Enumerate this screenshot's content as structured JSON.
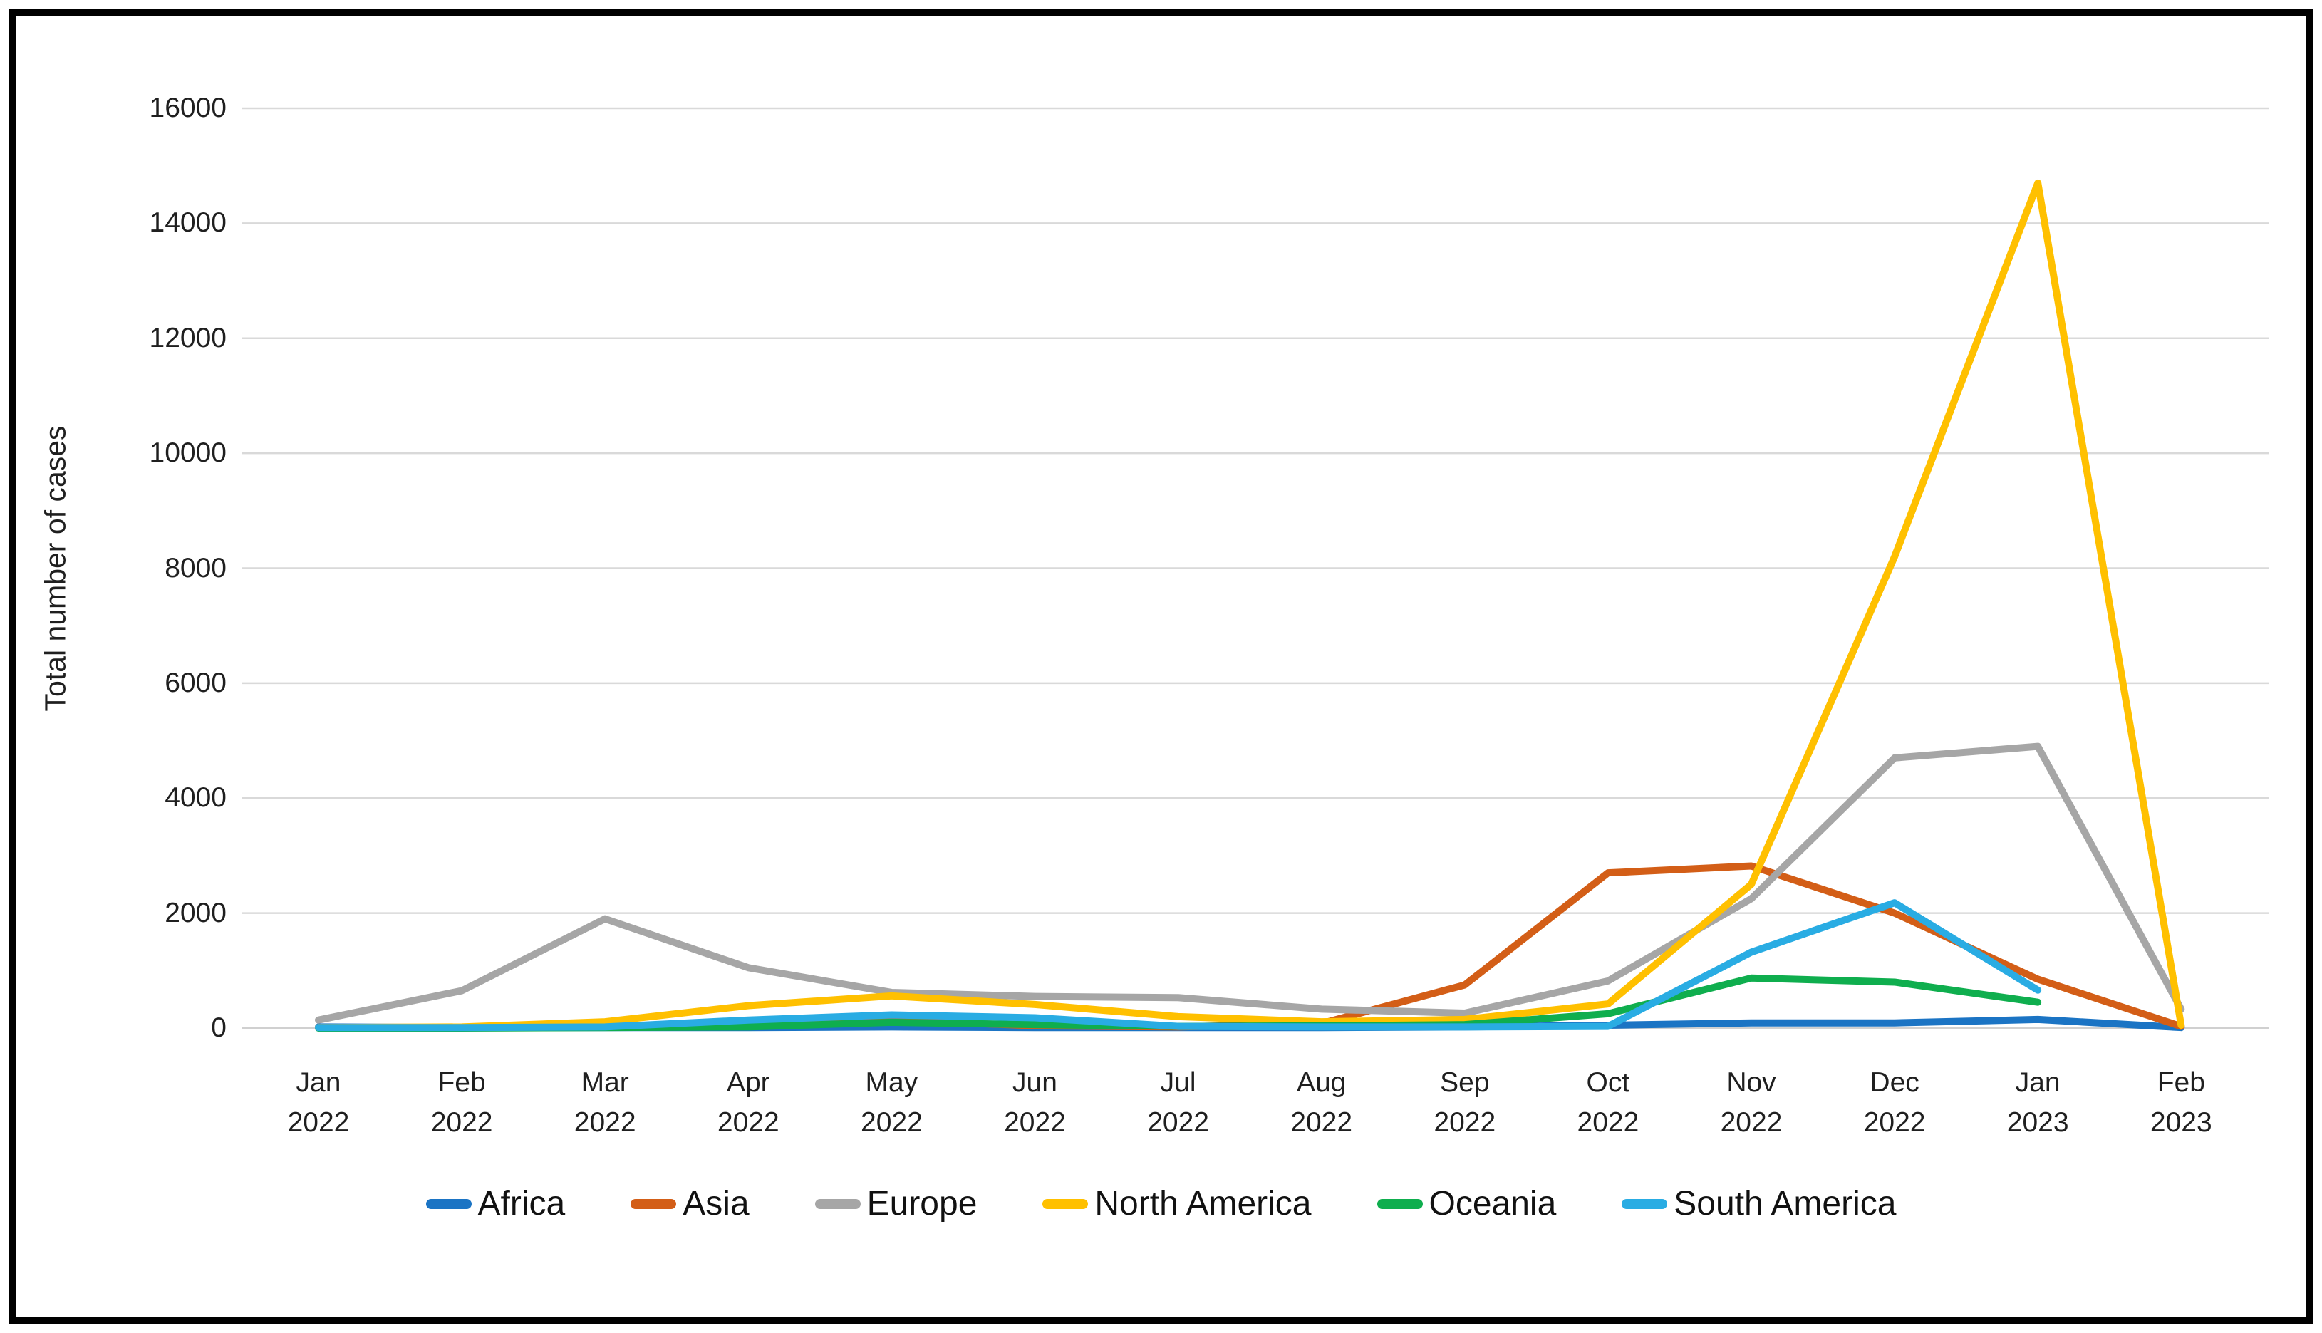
{
  "figure": {
    "background": "#ffffff",
    "frame_color": "#000000",
    "gridline_color": "#d9d9d9",
    "axis_line_color": "#d0d0d0",
    "text_color": "#1f1f1f"
  },
  "chart_data": {
    "type": "line",
    "title": "",
    "xlabel": "",
    "ylabel": "Total number of cases",
    "ylim": [
      0,
      16000
    ],
    "yticks": [
      0,
      2000,
      4000,
      6000,
      8000,
      10000,
      12000,
      14000,
      16000
    ],
    "grid": true,
    "legend_position": "bottom",
    "categories": [
      "Jan 2022",
      "Feb 2022",
      "Mar 2022",
      "Apr 2022",
      "May 2022",
      "Jun 2022",
      "Jul 2022",
      "Aug 2022",
      "Sep 2022",
      "Oct 2022",
      "Nov 2022",
      "Dec 2022",
      "Jan 2023",
      "Feb 2023"
    ],
    "series": [
      {
        "name": "Africa",
        "color": "#1b74c4",
        "values": [
          20,
          10,
          10,
          10,
          20,
          10,
          10,
          10,
          20,
          50,
          90,
          90,
          150,
          10
        ]
      },
      {
        "name": "Asia",
        "color": "#d35e17",
        "values": [
          10,
          10,
          20,
          60,
          140,
          40,
          20,
          80,
          750,
          2700,
          2820,
          2000,
          850,
          30
        ]
      },
      {
        "name": "Europe",
        "color": "#a6a6a6",
        "values": [
          140,
          650,
          1900,
          1050,
          620,
          550,
          530,
          330,
          260,
          820,
          2250,
          4700,
          4900,
          330
        ]
      },
      {
        "name": "North America",
        "color": "#ffc000",
        "values": [
          10,
          20,
          110,
          390,
          560,
          410,
          200,
          110,
          150,
          420,
          2500,
          8200,
          14700,
          50
        ]
      },
      {
        "name": "Oceania",
        "color": "#0fae4e",
        "values": [
          0,
          0,
          10,
          20,
          100,
          60,
          30,
          40,
          60,
          250,
          870,
          800,
          450,
          null
        ]
      },
      {
        "name": "South America",
        "color": "#29ace3",
        "values": [
          10,
          10,
          20,
          140,
          230,
          180,
          30,
          20,
          20,
          30,
          1320,
          2180,
          660,
          null
        ]
      }
    ]
  },
  "layout_note": "line chart of monthly case counts by continent, Jan 2022 - Feb 2023"
}
